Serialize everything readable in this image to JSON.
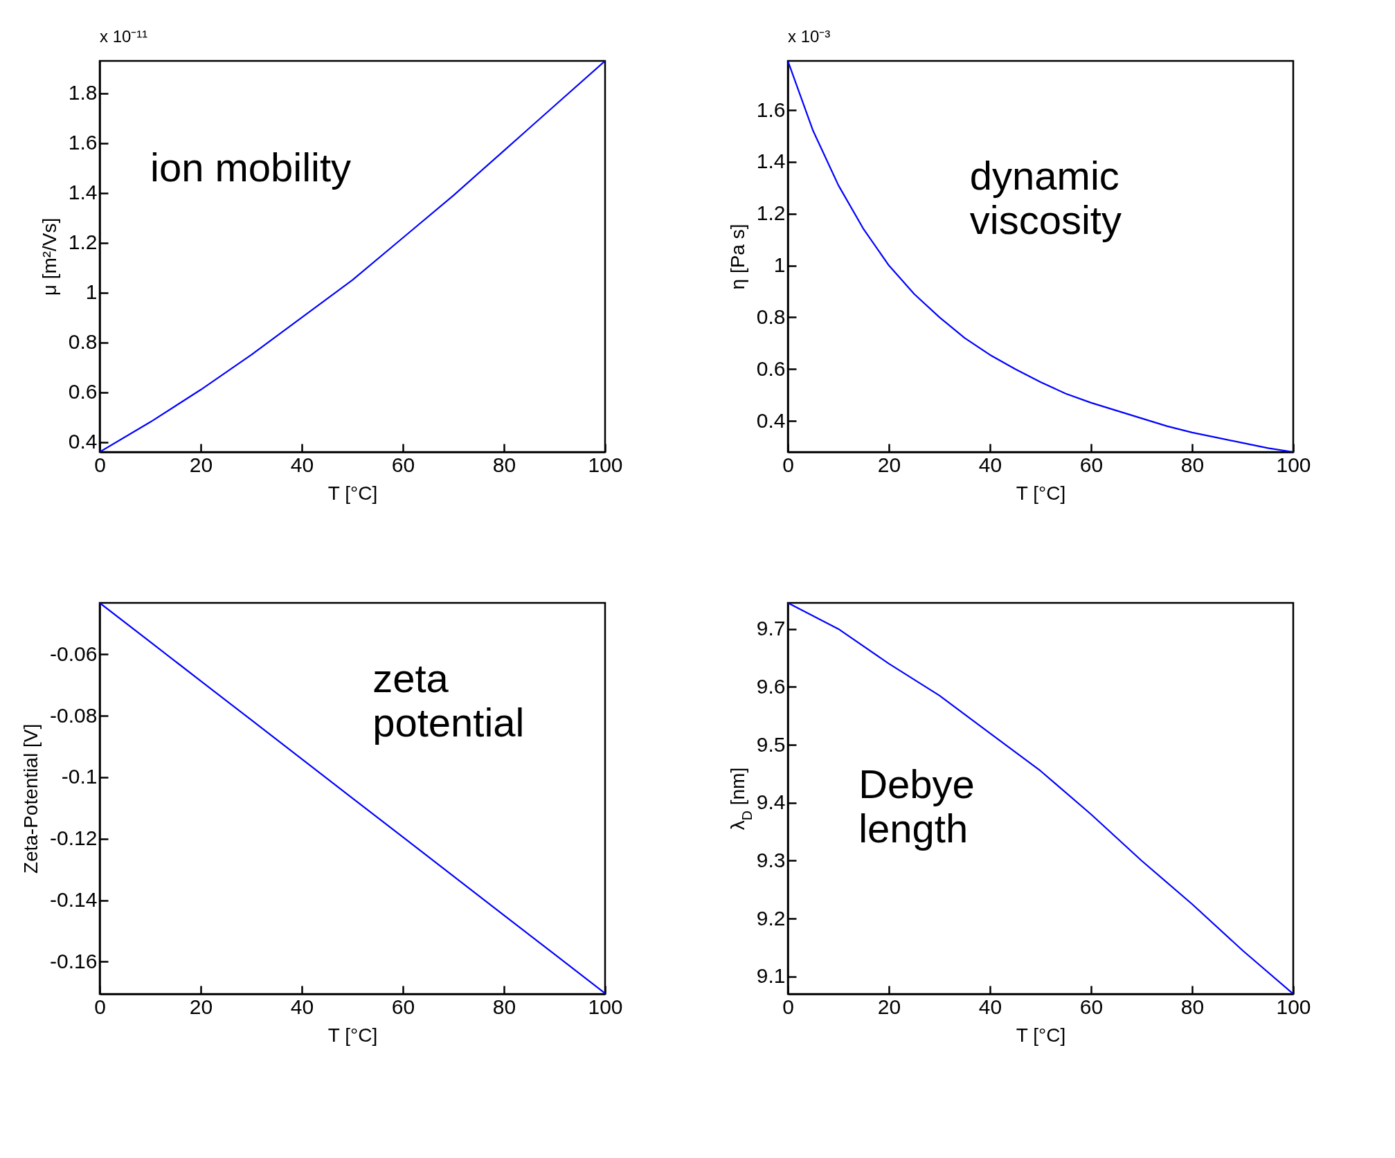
{
  "chart_data": [
    {
      "type": "line",
      "xlabel": "T [°C]",
      "ylabel": "μ [m²/Vs]",
      "annotations": [
        "x 10⁻¹¹",
        "ion mobility"
      ],
      "x": [
        0,
        10,
        20,
        30,
        40,
        50,
        60,
        70,
        80,
        90,
        100
      ],
      "series": [
        {
          "color": "#0000ff",
          "values": [
            0.36,
            0.48,
            0.61,
            0.75,
            0.9,
            1.05,
            1.22,
            1.39,
            1.57,
            1.75,
            1.93
          ]
        }
      ],
      "xlim": [
        0,
        100
      ],
      "xticks": [
        0,
        20,
        40,
        60,
        80,
        100
      ],
      "ylim": [
        0.36,
        1.93
      ],
      "yticks": [
        0.4,
        0.6,
        0.8,
        1,
        1.2,
        1.4,
        1.6,
        1.8
      ],
      "grid": false
    },
    {
      "type": "line",
      "xlabel": "T [°C]",
      "ylabel": "η [Pa s]",
      "annotations": [
        "x 10⁻³",
        "dynamic\nviscosity"
      ],
      "series": [
        {
          "color": "#0000ff",
          "x": [
            0,
            5,
            10,
            15,
            20,
            25,
            30,
            35,
            40,
            45,
            50,
            55,
            60,
            65,
            70,
            75,
            80,
            85,
            90,
            95,
            100
          ],
          "values": [
            1.79,
            1.52,
            1.31,
            1.14,
            1.0,
            0.89,
            0.8,
            0.72,
            0.655,
            0.6,
            0.55,
            0.505,
            0.47,
            0.44,
            0.41,
            0.38,
            0.355,
            0.335,
            0.315,
            0.295,
            0.28
          ]
        }
      ],
      "xlim": [
        0,
        100
      ],
      "xticks": [
        0,
        20,
        40,
        60,
        80,
        100
      ],
      "ylim": [
        0.28,
        1.79
      ],
      "yticks": [
        0.4,
        0.6,
        0.8,
        1,
        1.2,
        1.4,
        1.6
      ],
      "grid": false
    },
    {
      "type": "line",
      "xlabel": "T [°C]",
      "ylabel": "Zeta-Potential [V]",
      "annotations": [
        "zeta\npotential"
      ],
      "x": [
        0,
        10,
        20,
        30,
        40,
        50,
        60,
        70,
        80,
        90,
        100
      ],
      "series": [
        {
          "color": "#0000ff",
          "values": [
            -0.0433,
            -0.056,
            -0.0687,
            -0.0814,
            -0.0941,
            -0.1068,
            -0.1195,
            -0.1322,
            -0.1449,
            -0.1576,
            -0.1703
          ]
        }
      ],
      "xlim": [
        0,
        100
      ],
      "xticks": [
        0,
        20,
        40,
        60,
        80,
        100
      ],
      "ylim": [
        -0.1705,
        -0.0433
      ],
      "yticks": [
        -0.16,
        -0.14,
        -0.12,
        -0.1,
        -0.08,
        -0.06
      ],
      "grid": false
    },
    {
      "type": "line",
      "xlabel": "T [°C]",
      "ylabel": "λ$_{D}$ [nm]",
      "annotations": [
        "Debye\nlength"
      ],
      "x": [
        0,
        10,
        20,
        30,
        40,
        50,
        60,
        70,
        80,
        90,
        100
      ],
      "series": [
        {
          "color": "#0000ff",
          "values": [
            9.745,
            9.7,
            9.64,
            9.585,
            9.52,
            9.455,
            9.38,
            9.3,
            9.225,
            9.145,
            9.07
          ]
        }
      ],
      "xlim": [
        0,
        100
      ],
      "xticks": [
        0,
        20,
        40,
        60,
        80,
        100
      ],
      "ylim": [
        9.07,
        9.745
      ],
      "yticks": [
        9.1,
        9.2,
        9.3,
        9.4,
        9.5,
        9.6,
        9.7
      ],
      "grid": false
    }
  ]
}
